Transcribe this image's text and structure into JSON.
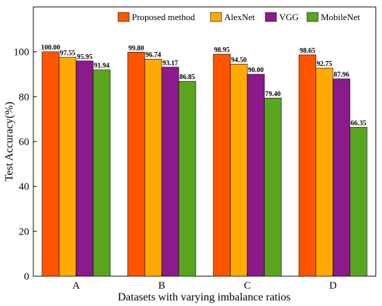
{
  "chart_data": {
    "type": "bar",
    "title": "",
    "xlabel": "Datasets with varying imbalance ratios",
    "ylabel": "Test Accuracy(%)",
    "ylim": [
      0,
      120
    ],
    "yticks": [
      0,
      20,
      40,
      60,
      80,
      100
    ],
    "grid": false,
    "legend_position": "top-right",
    "categories": [
      "A",
      "B",
      "C",
      "D"
    ],
    "series": [
      {
        "name": "Proposed method",
        "color": "#ff5500",
        "values": [
          100.0,
          99.8,
          98.95,
          98.65
        ],
        "labels": [
          "100.00",
          "99.80",
          "98.95",
          "98.65"
        ]
      },
      {
        "name": "AlexNet",
        "color": "#ffaa00",
        "values": [
          97.55,
          96.74,
          94.5,
          92.75
        ],
        "labels": [
          "97.55",
          "96.74",
          "94.50",
          "92.75"
        ]
      },
      {
        "name": "VGG",
        "color": "#8b1a8b",
        "values": [
          95.95,
          93.17,
          90.0,
          87.96
        ],
        "labels": [
          "95.95",
          "93.17",
          "90.00",
          "87.96"
        ]
      },
      {
        "name": "MobileNet",
        "color": "#5aa51e",
        "values": [
          91.94,
          86.85,
          79.4,
          66.35
        ],
        "labels": [
          "91.94",
          "86.85",
          "79.40",
          "66.35"
        ]
      }
    ]
  }
}
